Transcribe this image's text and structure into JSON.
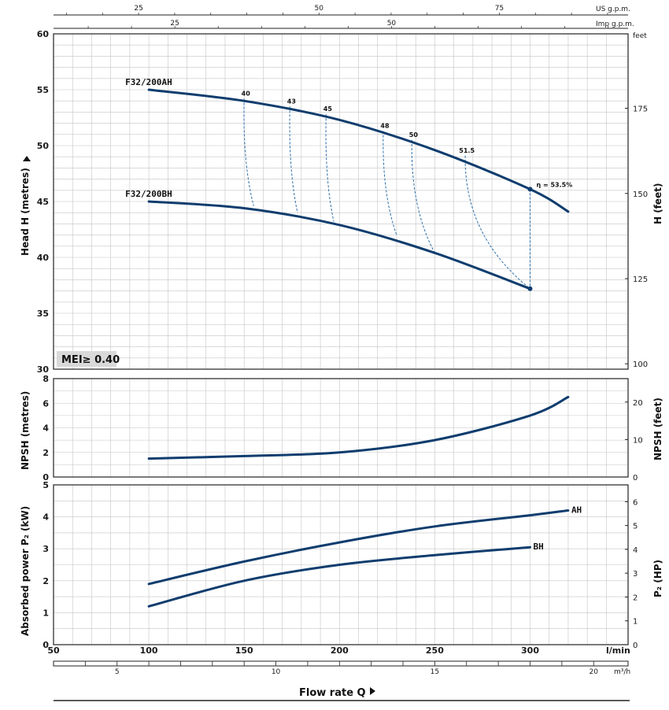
{
  "colors": {
    "curve": "#0f3d6e",
    "efficiency": "#2e6fa8",
    "grid": "#c4c4c4",
    "frame": "#222222",
    "badge": "#d9d9d9"
  },
  "labels": {
    "head_left": "Head H  (metres)",
    "head_right": "H (feet)",
    "npsh_left": "NPSH  (metres)",
    "npsh_right": "NPSH  (feet)",
    "power_left": "Absorbed power  P₂  (kW)",
    "power_right": "P₂  (HP)",
    "flow_title": "Flow rate  Q",
    "feet_unit": "feet",
    "lmin_unit": "l/min",
    "m3h_unit": "m³/h",
    "usgpm_unit": "US g.p.m.",
    "impgpm_unit": "Imp g.p.m.",
    "mei": "MEI≥ 0.40",
    "eff_label": "η = 53.5%"
  },
  "chart_data": [
    {
      "type": "line",
      "panel": "head",
      "ylabel": "Head H  (metres)",
      "ylim": [
        30,
        60
      ],
      "xlim": [
        50,
        340
      ],
      "x_unit": "l/min",
      "grid": true,
      "series": [
        {
          "name": "F32/200AH",
          "x": [
            100,
            150,
            200,
            250,
            300,
            320
          ],
          "y": [
            55.0,
            54.0,
            52.3,
            49.6,
            46.1,
            44.1
          ]
        },
        {
          "name": "F32/200BH",
          "x": [
            100,
            150,
            200,
            250,
            300
          ],
          "y": [
            45.0,
            44.4,
            42.9,
            40.4,
            37.2
          ]
        }
      ],
      "efficiency_lines": [
        {
          "label": "40",
          "top": [
            150,
            54.2
          ],
          "bottom": [
            155,
            44.6
          ]
        },
        {
          "label": "43",
          "top": [
            174,
            53.5
          ],
          "bottom": [
            178,
            44.0
          ]
        },
        {
          "label": "45",
          "top": [
            193,
            52.8
          ],
          "bottom": [
            197,
            43.2
          ]
        },
        {
          "label": "48",
          "top": [
            223,
            51.3
          ],
          "bottom": [
            230,
            42.0
          ]
        },
        {
          "label": "50",
          "top": [
            238,
            50.5
          ],
          "bottom": [
            250,
            40.4
          ]
        },
        {
          "label": "51.5",
          "top": [
            266,
            49.1
          ],
          "bottom": [
            300,
            37.2
          ]
        }
      ],
      "efficiency_max": {
        "label": "η = 53.5%",
        "x": [
          300
        ],
        "y_top": [
          46.1
        ],
        "y_bottom": [
          37.2
        ]
      },
      "badge": "MEI≥ 0.40",
      "y_ticks": [
        30,
        35,
        40,
        45,
        50,
        55,
        60
      ],
      "y2_label": "H (feet)",
      "y2_ticks": [
        100,
        125,
        150,
        175
      ]
    },
    {
      "type": "line",
      "panel": "npsh",
      "ylabel": "NPSH  (metres)",
      "ylim": [
        0,
        8
      ],
      "xlim": [
        50,
        340
      ],
      "grid": true,
      "series": [
        {
          "name": "",
          "x": [
            100,
            150,
            200,
            250,
            300,
            320
          ],
          "y": [
            1.5,
            1.7,
            2.0,
            3.0,
            5.0,
            6.5
          ]
        }
      ],
      "y_ticks": [
        0,
        2,
        4,
        6,
        8
      ],
      "y2_label": "NPSH  (feet)",
      "y2_ticks": [
        0,
        10,
        20
      ]
    },
    {
      "type": "line",
      "panel": "power",
      "ylabel": "Absorbed power  P₂  (kW)",
      "ylim": [
        0,
        5
      ],
      "xlim": [
        50,
        340
      ],
      "grid": true,
      "series": [
        {
          "name": "AH",
          "x": [
            100,
            150,
            200,
            250,
            300,
            320
          ],
          "y": [
            1.9,
            2.6,
            3.2,
            3.7,
            4.05,
            4.2
          ]
        },
        {
          "name": "BH",
          "x": [
            100,
            150,
            200,
            250,
            300
          ],
          "y": [
            1.2,
            2.0,
            2.5,
            2.8,
            3.05
          ]
        }
      ],
      "y_ticks": [
        0,
        1,
        2,
        3,
        4,
        5
      ],
      "y2_label": "P₂  (HP)",
      "y2_ticks": [
        0,
        1,
        2,
        3,
        4,
        5,
        6
      ]
    }
  ],
  "axes": {
    "lmin_ticks": [
      50,
      100,
      150,
      200,
      250,
      300
    ],
    "m3h_ticks": [
      5,
      10,
      15,
      20
    ],
    "usgpm_ticks": [
      25,
      50,
      75
    ],
    "impgpm_ticks": [
      25,
      50
    ]
  }
}
